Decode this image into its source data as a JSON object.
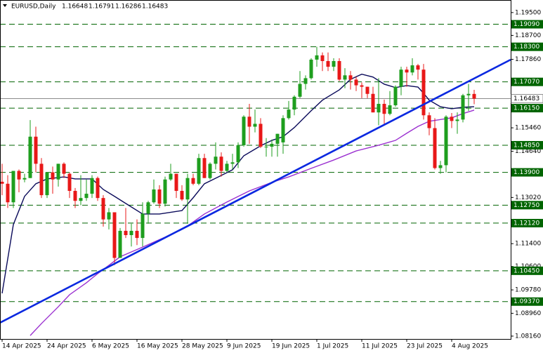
{
  "chart_data": {
    "type": "candlestick",
    "symbol": "EURUSD,Daily",
    "categories": [
      "14 Apr 2025",
      null,
      null,
      null,
      null,
      null,
      null,
      null,
      "24 Apr 2025",
      null,
      null,
      null,
      null,
      null,
      null,
      null,
      "6 May 2025",
      null,
      null,
      null,
      null,
      null,
      null,
      null,
      "16 May 2025",
      null,
      null,
      null,
      null,
      null,
      null,
      null,
      "28 May 2025",
      null,
      null,
      null,
      null,
      null,
      null,
      null,
      "9 Jun 2025",
      null,
      null,
      null,
      null,
      null,
      null,
      null,
      "19 Jun 2025",
      null,
      null,
      null,
      null,
      null,
      null,
      null,
      "1 Jul 2025",
      null,
      null,
      null,
      null,
      null,
      null,
      null,
      "11 Jul 2025",
      null,
      null,
      null,
      null,
      null,
      null,
      null,
      "23 Jul 2025",
      null,
      null,
      null,
      null,
      null,
      null,
      null,
      "4 Aug 2025",
      null,
      null,
      null,
      null
    ],
    "open": [
      1.1357,
      1.135,
      1.1285,
      1.1395,
      1.1365,
      1.137,
      1.1515,
      1.142,
      1.131,
      1.139,
      1.1365,
      1.142,
      1.1385,
      1.1325,
      1.129,
      1.13,
      1.1315,
      1.137,
      1.13,
      1.1225,
      1.125,
      1.109,
      1.1185,
      1.117,
      1.1185,
      1.116,
      1.1245,
      1.1285,
      1.133,
      1.128,
      1.1365,
      1.1385,
      1.1325,
      1.1295,
      1.137,
      1.135,
      1.144,
      1.137,
      1.142,
      1.1445,
      1.1395,
      1.142,
      1.1425,
      1.1485,
      1.1585,
      1.155,
      1.156,
      1.148,
      1.148,
      1.149,
      1.1495,
      1.158,
      1.161,
      1.1655,
      1.17,
      1.172,
      1.1785,
      1.18,
      1.178,
      1.176,
      1.178,
      1.1715,
      1.173,
      1.1715,
      1.1695,
      1.169,
      1.1665,
      1.16,
      1.163,
      1.1595,
      1.1625,
      1.169,
      1.175,
      1.174,
      1.1765,
      1.175,
      1.159,
      1.1545,
      1.1405,
      1.1415,
      1.1585,
      1.157,
      1.1575,
      1.166,
      1.16648
    ],
    "high": [
      1.142,
      1.138,
      1.1395,
      1.14,
      1.1385,
      1.1573,
      1.155,
      1.144,
      1.139,
      1.141,
      1.142,
      1.1425,
      1.139,
      1.1335,
      1.138,
      1.1365,
      1.138,
      1.1375,
      1.131,
      1.1265,
      1.125,
      1.1195,
      1.1265,
      1.121,
      1.1225,
      1.1285,
      1.129,
      1.1365,
      1.1345,
      1.1375,
      1.142,
      1.1385,
      1.1345,
      1.1385,
      1.1385,
      1.1455,
      1.1455,
      1.1425,
      1.1495,
      1.146,
      1.143,
      1.1455,
      1.1495,
      1.159,
      1.163,
      1.161,
      1.158,
      1.151,
      1.1505,
      1.1525,
      1.159,
      1.164,
      1.166,
      1.1745,
      1.173,
      1.179,
      1.183,
      1.181,
      1.181,
      1.179,
      1.179,
      1.1755,
      1.1745,
      1.1725,
      1.1705,
      1.169,
      1.169,
      1.172,
      1.1645,
      1.1675,
      1.1695,
      1.176,
      1.176,
      1.179,
      1.177,
      1.177,
      1.16,
      1.158,
      1.143,
      1.159,
      1.1598,
      1.16,
      1.1665,
      1.17,
      1.16791
    ],
    "low": [
      1.131,
      1.1265,
      1.1265,
      1.132,
      1.1355,
      1.137,
      1.139,
      1.13,
      1.13,
      1.1315,
      1.134,
      1.137,
      1.13,
      1.1265,
      1.1275,
      1.129,
      1.13,
      1.129,
      1.12,
      1.119,
      1.1065,
      1.109,
      1.116,
      1.113,
      1.1135,
      1.113,
      1.121,
      1.128,
      1.1265,
      1.127,
      1.136,
      1.13,
      1.129,
      1.121,
      1.1345,
      1.1345,
      1.137,
      1.1365,
      1.14,
      1.1375,
      1.139,
      1.14,
      1.1405,
      1.148,
      1.149,
      1.153,
      1.1475,
      1.1445,
      1.1445,
      1.1445,
      1.1455,
      1.1575,
      1.159,
      1.165,
      1.168,
      1.1715,
      1.176,
      1.1745,
      1.1745,
      1.1745,
      1.171,
      1.1685,
      1.168,
      1.1675,
      1.165,
      1.165,
      1.16,
      1.1555,
      1.1555,
      1.159,
      1.162,
      1.166,
      1.169,
      1.173,
      1.1715,
      1.1575,
      1.152,
      1.14,
      1.1385,
      1.139,
      1.1545,
      1.1525,
      1.1565,
      1.1605,
      1.16286
    ],
    "close": [
      1.135,
      1.1285,
      1.1395,
      1.1365,
      1.137,
      1.1515,
      1.142,
      1.131,
      1.139,
      1.1365,
      1.142,
      1.1385,
      1.1325,
      1.129,
      1.13,
      1.1315,
      1.137,
      1.13,
      1.1225,
      1.125,
      1.109,
      1.1185,
      1.117,
      1.1185,
      1.116,
      1.1245,
      1.1285,
      1.133,
      1.128,
      1.1365,
      1.1385,
      1.1325,
      1.1295,
      1.137,
      1.135,
      1.144,
      1.137,
      1.142,
      1.1445,
      1.1395,
      1.142,
      1.1425,
      1.1485,
      1.1585,
      1.155,
      1.156,
      1.148,
      1.148,
      1.149,
      1.1525,
      1.158,
      1.161,
      1.1655,
      1.17,
      1.172,
      1.1785,
      1.18,
      1.178,
      1.176,
      1.178,
      1.1715,
      1.173,
      1.1715,
      1.1695,
      1.169,
      1.1665,
      1.16,
      1.163,
      1.1595,
      1.1625,
      1.169,
      1.175,
      1.174,
      1.1765,
      1.175,
      1.159,
      1.1545,
      1.1405,
      1.1415,
      1.1585,
      1.157,
      1.1575,
      1.166,
      1.1665,
      1.16483
    ],
    "up_color": "#1e9e1e",
    "down_color": "#e81818",
    "xlim": [
      -0.375,
      90.5
    ],
    "ylim": [
      1.0806,
      1.1994
    ],
    "yticks": [
      {
        "value": 1.195,
        "label": "1.19500"
      },
      {
        "value": 1.187,
        "label": "1.18700"
      },
      {
        "value": 1.1786,
        "label": "1.17860"
      },
      {
        "value": 1.1546,
        "label": "1.15460"
      },
      {
        "value": 1.1464,
        "label": "1.14640"
      },
      {
        "value": 1.1302,
        "label": "1.13020"
      },
      {
        "value": 1.114,
        "label": "1.11400"
      },
      {
        "value": 1.106,
        "label": "1.10600"
      },
      {
        "value": 1.0978,
        "label": "1.09780"
      },
      {
        "value": 1.0896,
        "label": "1.08960"
      },
      {
        "value": 1.0816,
        "label": "1.08160"
      }
    ],
    "levels": [
      {
        "value": 1.1909,
        "label": "1.19090"
      },
      {
        "value": 1.183,
        "label": "1.18300"
      },
      {
        "value": 1.1707,
        "label": "1.17070"
      },
      {
        "value": 1.1615,
        "label": "1.16150"
      },
      {
        "value": 1.1485,
        "label": "1.14850"
      },
      {
        "value": 1.139,
        "label": "1.13900"
      },
      {
        "value": 1.1275,
        "label": "1.12750"
      },
      {
        "value": 1.1212,
        "label": "1.12120"
      },
      {
        "value": 1.1045,
        "label": "1.10450"
      },
      {
        "value": 1.0937,
        "label": "1.09370"
      }
    ],
    "level_color": "#006400",
    "moving_averages": [
      {
        "color": "#0a0a5a",
        "x": [
          0,
          2,
          4,
          6,
          8,
          11,
          13,
          16,
          18,
          20,
          22,
          25,
          28,
          32,
          34,
          36,
          39,
          41,
          43,
          46,
          48,
          50,
          52,
          55,
          57,
          60,
          62,
          64,
          66,
          68,
          70,
          72,
          74,
          75,
          76,
          78,
          80,
          82,
          84
        ],
        "values": [
          1.0966,
          1.1207,
          1.1306,
          1.135,
          1.1367,
          1.1374,
          1.1367,
          1.1367,
          1.133,
          1.1306,
          1.1281,
          1.1244,
          1.1244,
          1.1256,
          1.1301,
          1.135,
          1.1379,
          1.1399,
          1.1448,
          1.1483,
          1.1502,
          1.1515,
          1.1547,
          1.1606,
          1.1643,
          1.1679,
          1.1716,
          1.1734,
          1.1724,
          1.1699,
          1.1687,
          1.1694,
          1.1689,
          1.1667,
          1.1643,
          1.162,
          1.1613,
          1.1618,
          1.162
        ]
      },
      {
        "color": "#9b30d0",
        "x": [
          5,
          7,
          10,
          12,
          15,
          17,
          19,
          21,
          25,
          29,
          33,
          36,
          40,
          44,
          48,
          51,
          55,
          59,
          63,
          67,
          70,
          72,
          74,
          76,
          80,
          82,
          84
        ],
        "values": [
          1.0818,
          1.086,
          1.0919,
          1.0961,
          1.1003,
          1.1035,
          1.1064,
          1.1094,
          1.1128,
          1.1163,
          1.1202,
          1.1244,
          1.1286,
          1.1325,
          1.1355,
          1.1374,
          1.1404,
          1.1433,
          1.1465,
          1.1485,
          1.1502,
          1.1527,
          1.1551,
          1.1569,
          1.1581,
          1.1596,
          1.1608
        ]
      }
    ],
    "trendline": {
      "color": "#0a28e0",
      "x": [
        -0.375,
        90.5
      ],
      "values": [
        1.0863,
        1.1785
      ]
    }
  }
}
